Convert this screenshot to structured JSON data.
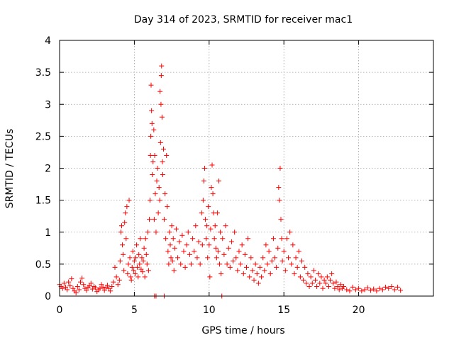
{
  "chart_data": {
    "type": "scatter",
    "title": "Day 314 of 2023, SRMTID for receiver mac1",
    "xlabel": "GPS time / hours",
    "ylabel": "SRMTID / TECUs",
    "xlim": [
      0,
      25
    ],
    "ylim": [
      0,
      4
    ],
    "xticks": [
      0,
      5,
      10,
      15,
      20
    ],
    "xtick_labels": [
      "0",
      "5",
      "10",
      "15",
      "20"
    ],
    "yticks": [
      0,
      0.5,
      1,
      1.5,
      2,
      2.5,
      3,
      3.5,
      4
    ],
    "ytick_labels": [
      "0",
      "0.5",
      "1",
      "1.5",
      "2",
      "2.5",
      "3",
      "3.5",
      "4"
    ],
    "grid": true,
    "marker": "+",
    "color": "#ff0000",
    "series": [
      {
        "name": "SRMTID",
        "points": [
          [
            0.0,
            0.18
          ],
          [
            0.1,
            0.15
          ],
          [
            0.2,
            0.12
          ],
          [
            0.3,
            0.2
          ],
          [
            0.4,
            0.14
          ],
          [
            0.5,
            0.1
          ],
          [
            0.6,
            0.22
          ],
          [
            0.7,
            0.16
          ],
          [
            0.8,
            0.27
          ],
          [
            0.9,
            0.12
          ],
          [
            1.0,
            0.08
          ],
          [
            1.1,
            0.05
          ],
          [
            1.2,
            0.15
          ],
          [
            1.3,
            0.1
          ],
          [
            1.4,
            0.22
          ],
          [
            1.5,
            0.28
          ],
          [
            1.6,
            0.18
          ],
          [
            1.7,
            0.12
          ],
          [
            1.8,
            0.09
          ],
          [
            1.9,
            0.14
          ],
          [
            2.0,
            0.16
          ],
          [
            2.1,
            0.2
          ],
          [
            2.2,
            0.11
          ],
          [
            2.3,
            0.15
          ],
          [
            2.4,
            0.13
          ],
          [
            2.5,
            0.07
          ],
          [
            2.6,
            0.1
          ],
          [
            2.7,
            0.12
          ],
          [
            2.8,
            0.18
          ],
          [
            2.9,
            0.14
          ],
          [
            3.0,
            0.09
          ],
          [
            3.1,
            0.13
          ],
          [
            3.2,
            0.17
          ],
          [
            3.3,
            0.12
          ],
          [
            3.4,
            0.08
          ],
          [
            3.5,
            0.15
          ],
          [
            3.6,
            0.22
          ],
          [
            3.7,
            0.45
          ],
          [
            3.8,
            0.3
          ],
          [
            3.9,
            0.18
          ],
          [
            4.0,
            0.25
          ],
          [
            4.05,
            0.55
          ],
          [
            4.1,
            1.0
          ],
          [
            4.15,
            1.1
          ],
          [
            4.2,
            0.8
          ],
          [
            4.25,
            0.65
          ],
          [
            4.3,
            0.4
          ],
          [
            4.35,
            1.15
          ],
          [
            4.4,
            1.3
          ],
          [
            4.45,
            0.9
          ],
          [
            4.5,
            1.4
          ],
          [
            4.55,
            0.35
          ],
          [
            4.6,
            0.5
          ],
          [
            4.65,
            1.5
          ],
          [
            4.7,
            0.6
          ],
          [
            4.75,
            0.3
          ],
          [
            4.8,
            0.25
          ],
          [
            4.85,
            0.45
          ],
          [
            4.9,
            0.7
          ],
          [
            4.95,
            0.4
          ],
          [
            5.0,
            0.55
          ],
          [
            5.05,
            0.35
          ],
          [
            5.1,
            0.6
          ],
          [
            5.15,
            0.8
          ],
          [
            5.2,
            0.45
          ],
          [
            5.25,
            0.3
          ],
          [
            5.3,
            0.65
          ],
          [
            5.35,
            0.5
          ],
          [
            5.4,
            0.9
          ],
          [
            5.45,
            0.42
          ],
          [
            5.5,
            0.6
          ],
          [
            5.55,
            0.38
          ],
          [
            5.6,
            0.55
          ],
          [
            5.65,
            0.75
          ],
          [
            5.7,
            0.3
          ],
          [
            5.75,
            0.9
          ],
          [
            5.8,
            0.65
          ],
          [
            5.85,
            0.5
          ],
          [
            5.9,
            1.0
          ],
          [
            5.95,
            0.4
          ],
          [
            6.0,
            1.2
          ],
          [
            6.05,
            1.5
          ],
          [
            6.08,
            2.2
          ],
          [
            6.1,
            2.5
          ],
          [
            6.12,
            3.3
          ],
          [
            6.15,
            2.9
          ],
          [
            6.18,
            2.7
          ],
          [
            6.2,
            1.9
          ],
          [
            6.25,
            2.1
          ],
          [
            6.3,
            2.6
          ],
          [
            6.33,
            1.2
          ],
          [
            6.36,
            2.2
          ],
          [
            6.4,
            1.6
          ],
          [
            6.45,
            1.0
          ],
          [
            6.5,
            1.8
          ],
          [
            6.55,
            2.0
          ],
          [
            6.6,
            1.3
          ],
          [
            6.65,
            1.7
          ],
          [
            6.7,
            1.5
          ],
          [
            6.72,
            3.2
          ],
          [
            6.75,
            2.4
          ],
          [
            6.78,
            3.0
          ],
          [
            6.8,
            3.45
          ],
          [
            6.82,
            3.6
          ],
          [
            6.85,
            2.8
          ],
          [
            6.88,
            2.1
          ],
          [
            6.9,
            1.9
          ],
          [
            6.95,
            2.3
          ],
          [
            7.0,
            1.2
          ],
          [
            7.05,
            1.6
          ],
          [
            7.1,
            0.9
          ],
          [
            7.15,
            2.2
          ],
          [
            7.2,
            1.4
          ],
          [
            7.25,
            0.7
          ],
          [
            7.3,
            0.5
          ],
          [
            7.35,
            1.0
          ],
          [
            7.4,
            0.8
          ],
          [
            7.45,
            0.6
          ],
          [
            7.5,
            1.1
          ],
          [
            7.55,
            0.55
          ],
          [
            7.6,
            0.9
          ],
          [
            7.65,
            0.4
          ],
          [
            7.7,
            0.75
          ],
          [
            7.8,
            1.05
          ],
          [
            7.9,
            0.6
          ],
          [
            8.0,
            0.85
          ],
          [
            8.1,
            0.5
          ],
          [
            8.2,
            0.95
          ],
          [
            8.3,
            0.7
          ],
          [
            8.4,
            0.45
          ],
          [
            8.5,
            0.8
          ],
          [
            8.6,
            1.0
          ],
          [
            8.7,
            0.65
          ],
          [
            8.8,
            0.5
          ],
          [
            8.9,
            0.9
          ],
          [
            9.0,
            0.7
          ],
          [
            9.1,
            1.1
          ],
          [
            9.2,
            0.6
          ],
          [
            9.3,
            0.85
          ],
          [
            9.4,
            0.5
          ],
          [
            9.5,
            1.3
          ],
          [
            9.55,
            0.8
          ],
          [
            9.6,
            1.5
          ],
          [
            9.65,
            1.8
          ],
          [
            9.7,
            2.0
          ],
          [
            9.75,
            1.2
          ],
          [
            9.8,
            0.9
          ],
          [
            9.85,
            1.1
          ],
          [
            9.9,
            0.6
          ],
          [
            9.95,
            1.4
          ],
          [
            10.0,
            0.8
          ],
          [
            10.05,
            0.3
          ],
          [
            10.1,
            1.05
          ],
          [
            10.15,
            1.7
          ],
          [
            10.2,
            2.05
          ],
          [
            10.25,
            1.6
          ],
          [
            10.3,
            1.3
          ],
          [
            10.35,
            0.9
          ],
          [
            10.4,
            1.1
          ],
          [
            10.45,
            0.75
          ],
          [
            10.5,
            0.6
          ],
          [
            10.55,
            1.3
          ],
          [
            10.6,
            0.7
          ],
          [
            10.65,
            1.8
          ],
          [
            10.7,
            0.5
          ],
          [
            10.75,
            1.0
          ],
          [
            10.8,
            0.35
          ],
          [
            10.9,
            0.9
          ],
          [
            11.0,
            0.65
          ],
          [
            11.1,
            1.1
          ],
          [
            11.2,
            0.5
          ],
          [
            11.3,
            0.75
          ],
          [
            11.4,
            0.45
          ],
          [
            11.5,
            0.85
          ],
          [
            11.6,
            0.55
          ],
          [
            11.7,
            1.0
          ],
          [
            11.8,
            0.6
          ],
          [
            11.9,
            0.4
          ],
          [
            12.0,
            0.7
          ],
          [
            12.1,
            0.5
          ],
          [
            12.2,
            0.8
          ],
          [
            12.3,
            0.35
          ],
          [
            12.4,
            0.65
          ],
          [
            12.5,
            0.45
          ],
          [
            12.6,
            0.9
          ],
          [
            12.7,
            0.3
          ],
          [
            12.8,
            0.6
          ],
          [
            12.9,
            0.4
          ],
          [
            13.0,
            0.25
          ],
          [
            13.1,
            0.5
          ],
          [
            13.2,
            0.35
          ],
          [
            13.3,
            0.2
          ],
          [
            13.4,
            0.45
          ],
          [
            13.5,
            0.3
          ],
          [
            13.6,
            0.6
          ],
          [
            13.7,
            0.4
          ],
          [
            13.8,
            0.8
          ],
          [
            13.9,
            0.5
          ],
          [
            14.0,
            0.7
          ],
          [
            14.1,
            0.35
          ],
          [
            14.2,
            0.55
          ],
          [
            14.3,
            0.9
          ],
          [
            14.4,
            0.6
          ],
          [
            14.5,
            0.45
          ],
          [
            14.6,
            0.75
          ],
          [
            14.65,
            1.7
          ],
          [
            14.7,
            1.5
          ],
          [
            14.75,
            2.0
          ],
          [
            14.8,
            1.2
          ],
          [
            14.85,
            0.9
          ],
          [
            14.9,
            0.55
          ],
          [
            15.0,
            0.7
          ],
          [
            15.1,
            0.4
          ],
          [
            15.2,
            0.9
          ],
          [
            15.3,
            0.6
          ],
          [
            15.4,
            1.0
          ],
          [
            15.5,
            0.5
          ],
          [
            15.6,
            0.8
          ],
          [
            15.7,
            0.35
          ],
          [
            15.8,
            0.6
          ],
          [
            15.9,
            0.45
          ],
          [
            16.0,
            0.7
          ],
          [
            16.1,
            0.3
          ],
          [
            16.2,
            0.55
          ],
          [
            16.3,
            0.25
          ],
          [
            16.4,
            0.45
          ],
          [
            16.5,
            0.2
          ],
          [
            16.6,
            0.35
          ],
          [
            16.7,
            0.15
          ],
          [
            16.8,
            0.3
          ],
          [
            16.9,
            0.2
          ],
          [
            17.0,
            0.4
          ],
          [
            17.1,
            0.25
          ],
          [
            17.2,
            0.15
          ],
          [
            17.3,
            0.35
          ],
          [
            17.4,
            0.2
          ],
          [
            17.5,
            0.3
          ],
          [
            17.6,
            0.12
          ],
          [
            17.7,
            0.25
          ],
          [
            17.8,
            0.2
          ],
          [
            17.9,
            0.3
          ],
          [
            18.0,
            0.15
          ],
          [
            18.1,
            0.25
          ],
          [
            18.2,
            0.35
          ],
          [
            18.3,
            0.2
          ],
          [
            18.4,
            0.12
          ],
          [
            18.5,
            0.22
          ],
          [
            18.6,
            0.15
          ],
          [
            18.7,
            0.1
          ],
          [
            18.8,
            0.18
          ],
          [
            18.9,
            0.12
          ],
          [
            19.0,
            0.15
          ],
          [
            19.2,
            0.1
          ],
          [
            19.4,
            0.08
          ],
          [
            19.6,
            0.14
          ],
          [
            19.8,
            0.1
          ],
          [
            20.0,
            0.12
          ],
          [
            20.2,
            0.08
          ],
          [
            20.4,
            0.1
          ],
          [
            20.6,
            0.13
          ],
          [
            20.8,
            0.09
          ],
          [
            21.0,
            0.11
          ],
          [
            21.2,
            0.08
          ],
          [
            21.4,
            0.12
          ],
          [
            21.6,
            0.1
          ],
          [
            21.8,
            0.14
          ],
          [
            22.0,
            0.12
          ],
          [
            22.2,
            0.15
          ],
          [
            22.4,
            0.1
          ],
          [
            22.6,
            0.14
          ],
          [
            22.8,
            0.09
          ]
        ]
      }
    ],
    "zero_markers": [
      [
        6.35,
        0
      ],
      [
        6.45,
        0
      ],
      [
        7.0,
        0
      ],
      [
        10.85,
        0
      ]
    ]
  }
}
